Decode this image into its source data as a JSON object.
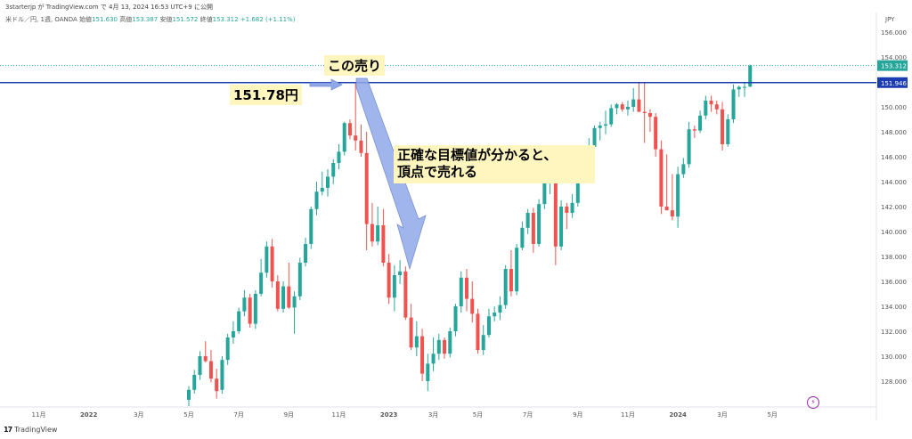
{
  "header": {
    "author_line": "3starterjp が TradingView.com で 4月 13, 2024 16:53 UTC+9 に公開",
    "symbol_line": "米ドル／円, 1週, OANDA",
    "ohlc": [
      {
        "label": "始値",
        "value": "151.630"
      },
      {
        "label": "高値",
        "value": "153.387"
      },
      {
        "label": "安値",
        "value": "151.572"
      },
      {
        "label": "終値",
        "value": "153.312"
      }
    ],
    "change": "+1.682 (+1.11%)",
    "currency": "JPY"
  },
  "annotations": {
    "sell_here": "この売り",
    "price_label": "151.78円",
    "message_line1": "正確な目標値が分かると、",
    "message_line2": "頂点で売れる"
  },
  "footer": {
    "logo": "17",
    "brand": "TradingView"
  },
  "colors": {
    "up": "#26a69a",
    "down": "#ef5350",
    "hline": "#1a3cb0",
    "last_price_line": "#26a69a",
    "arrow": "#8fa8e8",
    "highlight": "#fff6bf"
  },
  "chart_data": {
    "type": "candlestick",
    "symbol": "USDJPY",
    "interval": "1W",
    "ylim": [
      126.0,
      157.0
    ],
    "y_ticks": [
      128.0,
      130.0,
      132.0,
      134.0,
      136.0,
      138.0,
      140.0,
      142.0,
      144.0,
      146.0,
      148.0,
      150.0,
      152.0,
      154.0,
      156.0
    ],
    "x_ticks": [
      {
        "label": "11月",
        "index": -27
      },
      {
        "label": "2022",
        "index": -18
      },
      {
        "label": "3月",
        "index": -9
      },
      {
        "label": "5月",
        "index": 0
      },
      {
        "label": "7月",
        "index": 9
      },
      {
        "label": "9月",
        "index": 18
      },
      {
        "label": "11月",
        "index": 27
      },
      {
        "label": "2023",
        "index": 36
      },
      {
        "label": "3月",
        "index": 44
      },
      {
        "label": "5月",
        "index": 52
      },
      {
        "label": "7月",
        "index": 61
      },
      {
        "label": "9月",
        "index": 70
      },
      {
        "label": "11月",
        "index": 79
      },
      {
        "label": "2024",
        "index": 88
      },
      {
        "label": "3月",
        "index": 96
      },
      {
        "label": "5月",
        "index": 105
      }
    ],
    "horizontal_line": {
      "value": 151.946,
      "label": "151.946"
    },
    "last_price": {
      "value": 153.312,
      "label": "153.312"
    },
    "candles": [
      [
        126.5,
        127.6,
        126.0,
        127.3
      ],
      [
        127.3,
        128.9,
        127.0,
        128.5
      ],
      [
        128.5,
        130.4,
        128.1,
        130.0
      ],
      [
        130.0,
        131.2,
        129.5,
        129.6
      ],
      [
        129.6,
        130.5,
        127.9,
        128.2
      ],
      [
        128.2,
        129.0,
        126.6,
        127.2
      ],
      [
        127.3,
        130.0,
        127.0,
        129.7
      ],
      [
        129.7,
        131.8,
        129.3,
        131.5
      ],
      [
        131.5,
        132.8,
        131.0,
        132.0
      ],
      [
        132.0,
        133.9,
        131.8,
        133.6
      ],
      [
        133.6,
        135.3,
        133.2,
        134.7
      ],
      [
        134.7,
        135.0,
        132.3,
        132.6
      ],
      [
        132.6,
        135.3,
        132.2,
        135.0
      ],
      [
        135.0,
        137.8,
        134.8,
        136.7
      ],
      [
        136.7,
        139.2,
        136.3,
        138.8
      ],
      [
        138.8,
        139.4,
        135.5,
        136.0
      ],
      [
        136.0,
        136.5,
        133.6,
        133.8
      ],
      [
        133.8,
        136.0,
        133.5,
        135.6
      ],
      [
        135.6,
        137.5,
        133.8,
        133.9
      ],
      [
        133.9,
        135.2,
        131.8,
        134.8
      ],
      [
        134.8,
        137.9,
        134.5,
        137.5
      ],
      [
        137.5,
        139.5,
        137.2,
        139.0
      ],
      [
        139.0,
        142.0,
        138.6,
        141.8
      ],
      [
        141.8,
        144.0,
        141.3,
        143.2
      ],
      [
        143.2,
        144.8,
        142.9,
        143.5
      ],
      [
        143.5,
        145.0,
        142.8,
        144.4
      ],
      [
        144.4,
        145.8,
        143.8,
        145.5
      ],
      [
        145.5,
        147.0,
        145.0,
        146.4
      ],
      [
        146.4,
        148.8,
        146.1,
        148.7
      ],
      [
        148.7,
        149.0,
        147.4,
        147.7
      ],
      [
        147.7,
        151.94,
        146.5,
        147.3
      ],
      [
        147.3,
        148.6,
        146.0,
        146.3
      ],
      [
        146.3,
        148.0,
        138.5,
        140.6
      ],
      [
        140.6,
        142.3,
        138.8,
        139.2
      ],
      [
        139.2,
        142.0,
        138.9,
        140.5
      ],
      [
        140.5,
        141.8,
        137.2,
        137.5
      ],
      [
        137.5,
        138.2,
        134.2,
        134.7
      ],
      [
        134.7,
        137.3,
        133.6,
        136.5
      ],
      [
        136.5,
        137.7,
        135.8,
        136.8
      ],
      [
        136.8,
        137.2,
        132.9,
        133.1
      ],
      [
        133.1,
        134.2,
        130.5,
        130.7
      ],
      [
        130.7,
        132.8,
        130.0,
        131.6
      ],
      [
        131.6,
        132.2,
        128.0,
        128.6
      ],
      [
        128.0,
        130.2,
        127.2,
        129.4
      ],
      [
        129.4,
        131.5,
        128.8,
        130.2
      ],
      [
        130.2,
        131.8,
        129.7,
        131.3
      ],
      [
        131.3,
        131.5,
        129.8,
        130.2
      ],
      [
        130.2,
        132.3,
        129.9,
        132.0
      ],
      [
        132.0,
        134.2,
        131.6,
        134.0
      ],
      [
        134.0,
        136.8,
        133.5,
        136.3
      ],
      [
        136.3,
        137.0,
        133.6,
        134.6
      ],
      [
        134.6,
        136.0,
        132.7,
        133.4
      ],
      [
        133.4,
        133.8,
        130.2,
        130.5
      ],
      [
        130.5,
        132.5,
        130.1,
        131.7
      ],
      [
        131.7,
        133.8,
        131.5,
        133.2
      ],
      [
        133.2,
        134.0,
        132.8,
        133.5
      ],
      [
        133.5,
        134.8,
        132.9,
        134.1
      ],
      [
        134.1,
        137.3,
        133.8,
        137.0
      ],
      [
        137.0,
        138.5,
        134.8,
        135.2
      ],
      [
        135.2,
        139.0,
        134.9,
        138.7
      ],
      [
        138.7,
        140.8,
        138.5,
        140.3
      ],
      [
        140.3,
        141.8,
        139.8,
        141.5
      ],
      [
        141.5,
        141.9,
        138.3,
        139.0
      ],
      [
        139.0,
        142.6,
        138.8,
        142.2
      ],
      [
        142.2,
        144.2,
        141.8,
        144.0
      ],
      [
        144.0,
        145.1,
        143.0,
        144.5
      ],
      [
        144.5,
        145.0,
        137.3,
        138.8
      ],
      [
        138.8,
        142.5,
        138.5,
        142.0
      ],
      [
        142.0,
        142.3,
        140.2,
        141.5
      ],
      [
        141.5,
        143.0,
        141.1,
        142.3
      ],
      [
        142.3,
        145.6,
        142.0,
        145.3
      ],
      [
        145.3,
        146.7,
        144.9,
        146.5
      ],
      [
        146.5,
        147.5,
        146.1,
        146.8
      ],
      [
        146.8,
        148.5,
        146.5,
        148.3
      ],
      [
        148.3,
        148.8,
        147.3,
        148.5
      ],
      [
        148.5,
        149.7,
        147.8,
        148.6
      ],
      [
        148.6,
        150.2,
        148.4,
        149.9
      ],
      [
        149.9,
        150.3,
        149.4,
        150.2
      ],
      [
        150.2,
        150.4,
        149.6,
        149.8
      ],
      [
        149.8,
        150.5,
        149.3,
        150.0
      ],
      [
        150.0,
        151.5,
        149.6,
        150.6
      ],
      [
        150.6,
        151.9,
        149.6,
        149.6
      ],
      [
        149.6,
        151.9,
        147.1,
        149.5
      ],
      [
        149.5,
        149.8,
        148.0,
        149.2
      ],
      [
        149.2,
        149.5,
        146.0,
        146.6
      ],
      [
        146.6,
        147.3,
        141.4,
        142.0
      ],
      [
        142.0,
        146.2,
        141.7,
        141.7
      ],
      [
        141.7,
        144.6,
        140.9,
        141.2
      ],
      [
        141.2,
        145.2,
        140.3,
        144.6
      ],
      [
        144.6,
        145.9,
        144.3,
        145.4
      ],
      [
        145.4,
        148.8,
        145.1,
        148.2
      ],
      [
        148.2,
        148.5,
        147.5,
        148.1
      ],
      [
        148.1,
        149.7,
        147.9,
        149.3
      ],
      [
        149.3,
        150.9,
        149.0,
        150.5
      ],
      [
        150.5,
        150.9,
        149.6,
        150.2
      ],
      [
        150.2,
        150.5,
        149.4,
        149.8
      ],
      [
        149.8,
        150.4,
        146.5,
        147.0
      ],
      [
        147.0,
        149.4,
        146.8,
        149.0
      ],
      [
        149.0,
        151.8,
        148.7,
        151.4
      ],
      [
        151.4,
        151.7,
        150.8,
        151.6
      ],
      [
        151.6,
        151.9,
        150.8,
        151.6
      ],
      [
        151.63,
        153.387,
        151.572,
        153.312
      ]
    ]
  }
}
